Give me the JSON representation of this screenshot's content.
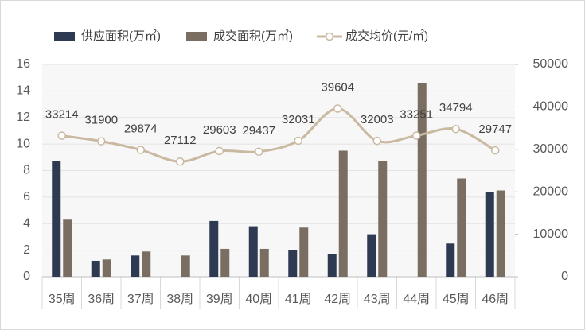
{
  "chart_data": {
    "type": "bar-line",
    "categories": [
      "35周",
      "36周",
      "37周",
      "38周",
      "39周",
      "40周",
      "41周",
      "42周",
      "43周",
      "44周",
      "45周",
      "46周"
    ],
    "series": [
      {
        "name": "供应面积(万㎡)",
        "type": "bar",
        "color": "#2e3a52",
        "values": [
          8.7,
          1.2,
          1.6,
          null,
          4.2,
          3.8,
          2.0,
          1.7,
          3.2,
          null,
          2.5,
          6.4
        ]
      },
      {
        "name": "成交面积(万㎡)",
        "type": "bar",
        "color": "#7a6e62",
        "values": [
          4.3,
          1.3,
          1.9,
          1.6,
          2.1,
          2.1,
          3.7,
          9.5,
          8.7,
          14.6,
          7.4,
          6.5
        ]
      },
      {
        "name": "成交均价(元/㎡)",
        "type": "line",
        "axis": "y2",
        "color": "#c9b9a0",
        "values": [
          33214,
          31900,
          29874,
          27112,
          29603,
          29437,
          32031,
          39604,
          32003,
          33251,
          34794,
          29747
        ]
      }
    ],
    "ylim": [
      0,
      16
    ],
    "yticks": [
      0,
      2,
      4,
      6,
      8,
      10,
      12,
      14,
      16
    ],
    "y2lim": [
      0,
      50000
    ],
    "y2ticks": [
      0,
      10000,
      20000,
      30000,
      40000,
      50000
    ],
    "grid": true,
    "legend": "top"
  }
}
